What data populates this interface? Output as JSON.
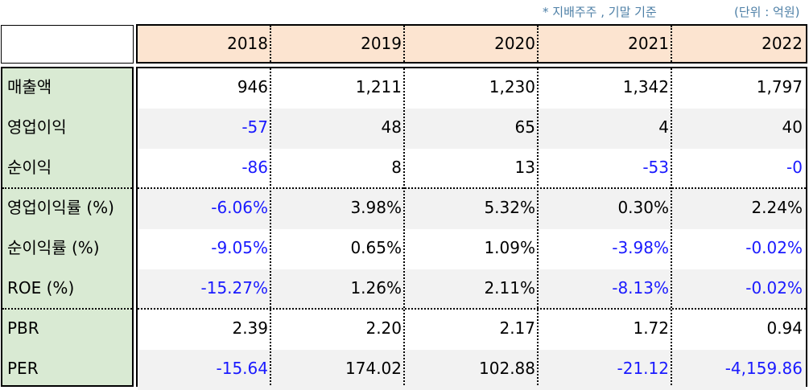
{
  "notes": {
    "basis": "* 지배주주 , 기말 기준",
    "unit": "(단위 : 억원)"
  },
  "years": [
    "2018",
    "2019",
    "2020",
    "2021",
    "2022"
  ],
  "rows": [
    {
      "label": "매출액",
      "values": [
        "946",
        "1,211",
        "1,230",
        "1,342",
        "1,797"
      ]
    },
    {
      "label": "영업이익",
      "values": [
        "-57",
        "48",
        "65",
        "4",
        "40"
      ]
    },
    {
      "label": "순이익",
      "values": [
        "-86",
        "8",
        "13",
        "-53",
        "-0"
      ]
    },
    {
      "label": "영업이익률 (%)",
      "values": [
        "-6.06%",
        "3.98%",
        "5.32%",
        "0.30%",
        "2.24%"
      ]
    },
    {
      "label": "순이익률 (%)",
      "values": [
        "-9.05%",
        "0.65%",
        "1.09%",
        "-3.98%",
        "-0.02%"
      ]
    },
    {
      "label": "ROE (%)",
      "values": [
        "-15.27%",
        "1.26%",
        "2.11%",
        "-8.13%",
        "-0.02%"
      ]
    },
    {
      "label": "PBR",
      "values": [
        "2.39",
        "2.20",
        "2.17",
        "1.72",
        "0.94"
      ]
    },
    {
      "label": "PER",
      "values": [
        "-15.64",
        "174.02",
        "102.88",
        "-21.12",
        "-4,159.86"
      ]
    }
  ],
  "colors": {
    "header_bg": "#fce4d0",
    "label_bg": "#d9ead3",
    "stripe_bg": "#f2f2f2",
    "negative_text": "#1a1aff",
    "note_text": "#4d7fa6"
  }
}
